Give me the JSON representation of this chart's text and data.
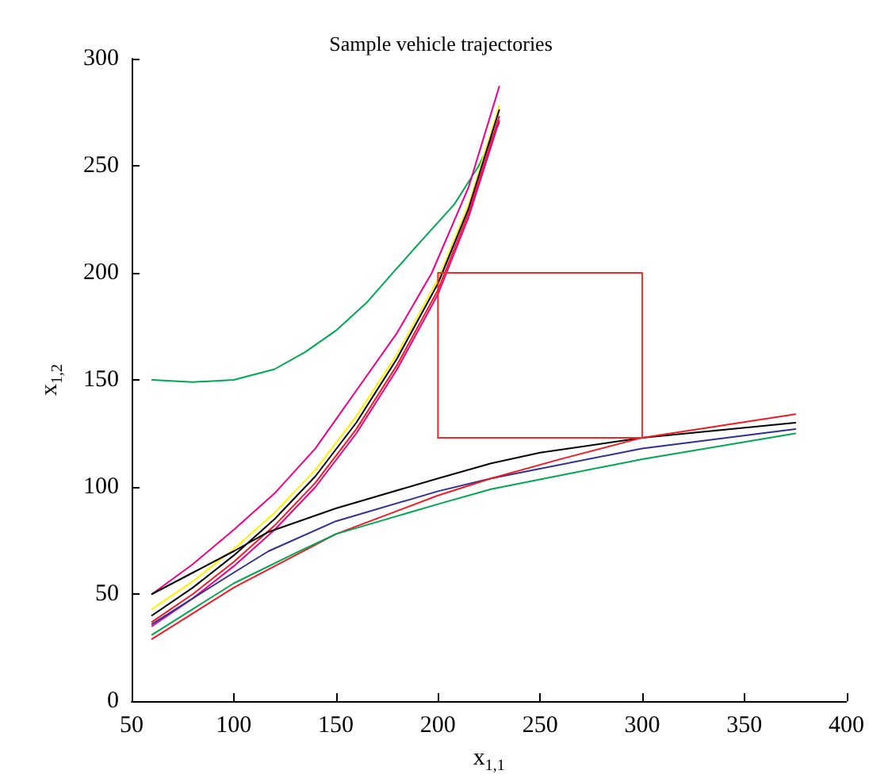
{
  "chart_data": {
    "type": "line",
    "title": "Sample vehicle trajectories",
    "xlabel": "x$_{1,1}$",
    "ylabel": "x$_{1,2}$",
    "xlim": [
      50,
      400
    ],
    "xticks": [
      50,
      100,
      150,
      200,
      250,
      300,
      350,
      400
    ],
    "ylim": [
      0,
      300
    ],
    "yticks": [
      0,
      50,
      100,
      150,
      200,
      250,
      300
    ],
    "grid": false,
    "marker": "none",
    "line_style": "solid",
    "series": [
      {
        "color": "#00a651",
        "x": [
          60,
          80,
          100,
          120,
          135,
          150,
          165,
          177,
          190,
          208,
          220,
          230
        ],
        "values": [
          150,
          149,
          150,
          155,
          163,
          173,
          186,
          199,
          213,
          232,
          250,
          270
        ]
      },
      {
        "color": "#ec008c",
        "x": [
          60,
          80,
          100,
          120,
          140,
          160,
          180,
          197,
          215,
          230
        ],
        "values": [
          50,
          64,
          80,
          97,
          118,
          145,
          172,
          200,
          240,
          287
        ]
      },
      {
        "color": "#fff200",
        "x": [
          60,
          80,
          100,
          120,
          140,
          160,
          180,
          200,
          215,
          230
        ],
        "values": [
          43,
          56,
          71,
          88,
          108,
          133,
          162,
          197,
          232,
          278
        ]
      },
      {
        "color": "#000000",
        "x": [
          60,
          80,
          100,
          120,
          140,
          160,
          180,
          200,
          215,
          230
        ],
        "values": [
          40,
          53,
          68,
          85,
          105,
          130,
          160,
          195,
          230,
          276
        ]
      },
      {
        "color": "#ed1c24",
        "x": [
          60,
          80,
          100,
          120,
          140,
          160,
          180,
          200,
          215,
          230
        ],
        "values": [
          37,
          50,
          65,
          82,
          102,
          127,
          157,
          192,
          228,
          273
        ]
      },
      {
        "color": "#ec008c",
        "x": [
          60,
          80,
          100,
          120,
          140,
          160,
          180,
          200,
          215,
          230
        ],
        "values": [
          35,
          48,
          63,
          80,
          100,
          125,
          155,
          190,
          226,
          271
        ]
      },
      {
        "color": "#000000",
        "x": [
          60,
          80,
          100,
          117,
          150,
          200,
          226,
          250,
          300,
          375
        ],
        "values": [
          50,
          60,
          70,
          79,
          90,
          104,
          111,
          116,
          123,
          130
        ]
      },
      {
        "color": "#2e3192",
        "x": [
          60,
          80,
          100,
          117,
          150,
          200,
          226,
          300,
          375
        ],
        "values": [
          36,
          48,
          60,
          70,
          84,
          98,
          104,
          118,
          127
        ]
      },
      {
        "color": "#ed1c24",
        "x": [
          60,
          80,
          100,
          130,
          150,
          200,
          226,
          260,
          300,
          375
        ],
        "values": [
          29,
          41,
          53,
          68,
          78,
          96,
          104,
          113,
          123,
          134
        ]
      },
      {
        "color": "#00a651",
        "x": [
          60,
          80,
          100,
          130,
          150,
          200,
          226,
          300,
          375
        ],
        "values": [
          31,
          43,
          55,
          69,
          78,
          92,
          99,
          113,
          125
        ]
      },
      {
        "color": "#ee2a2a",
        "x": [
          200,
          200,
          300,
          300
        ],
        "values": [
          123,
          200,
          200,
          123
        ]
      },
      {
        "color": "#ee2a2a",
        "x": [
          200,
          300
        ],
        "values": [
          123,
          123
        ]
      }
    ]
  }
}
